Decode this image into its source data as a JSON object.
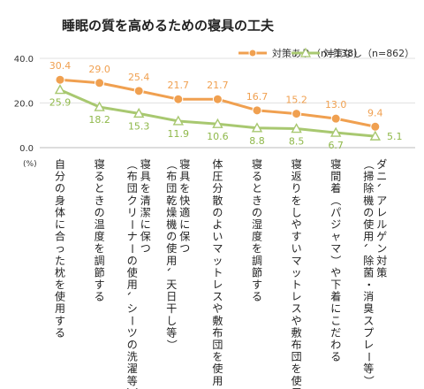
{
  "chart_data": {
    "type": "line",
    "title": "睡眠の質を高めるための寝具の工夫",
    "unit_label": "(%)",
    "ylim": [
      0,
      40
    ],
    "y_ticks": [
      "0.0",
      "20.0",
      "40.0"
    ],
    "y_tick_values": [
      0,
      20,
      40
    ],
    "legend_position": "top-right",
    "categories": [
      [
        "自分の身体に合った枕を使用する"
      ],
      [
        "寝るときの温度を調節する"
      ],
      [
        "寝具を清潔に保つ",
        "（布団クリーナーの使用、シーツの洗濯等）"
      ],
      [
        "寝具を快適に保つ",
        "（布団乾燥機の使用、天日干し等）"
      ],
      [
        "体圧分散のよいマットレスや敷布団を使用"
      ],
      [
        "寝るときの湿度を調節する"
      ],
      [
        "寝返りをしやすいマットレスや敷布団を使用"
      ],
      [
        "寝間着（パジャマ）や下着にこだわる"
      ],
      [
        "ダニ、アレルゲン対策",
        "（掃除機の使用、除菌・消臭スプレー等）"
      ]
    ],
    "series": [
      {
        "name": "対策あり（n=138）",
        "color": "#f0a050",
        "marker": "circle",
        "values": [
          30.4,
          29.0,
          25.4,
          21.7,
          21.7,
          16.7,
          15.2,
          13.0,
          9.4
        ],
        "labels": [
          "30.4",
          "29.0",
          "25.4",
          "21.7",
          "21.7",
          "16.7",
          "15.2",
          "13.0",
          "9.4"
        ]
      },
      {
        "name": "対策なし（n=862）",
        "color": "#a8c870",
        "marker": "triangle",
        "values": [
          25.9,
          18.2,
          15.3,
          11.9,
          10.6,
          8.8,
          8.5,
          6.7,
          5.1
        ],
        "labels": [
          "25.9",
          "18.2",
          "15.3",
          "11.9",
          "10.6",
          "8.8",
          "8.5",
          "6.7",
          "5.1"
        ]
      }
    ]
  }
}
